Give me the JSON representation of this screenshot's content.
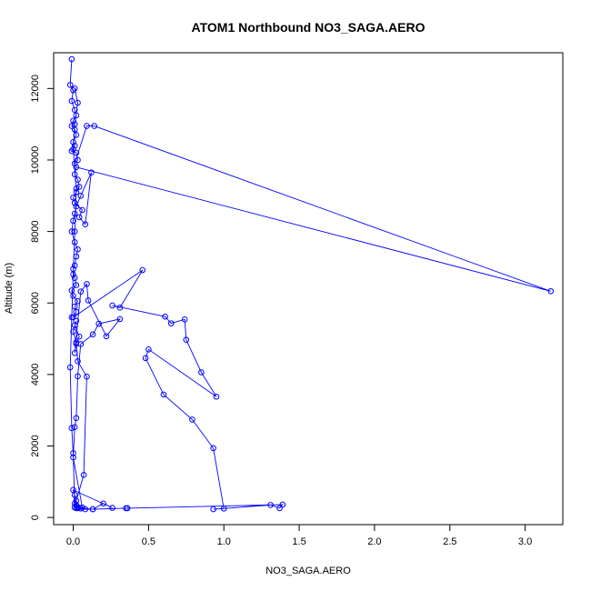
{
  "chart_data": {
    "type": "line",
    "title": "ATOM1 Northbound NO3_SAGA.AERO",
    "xlabel": "NO3_SAGA.AERO",
    "ylabel": "Altitude (m)",
    "xlim": [
      -0.13,
      3.25
    ],
    "ylim": [
      -200,
      13000
    ],
    "xticks": [
      "0.0",
      "0.5",
      "1.0",
      "1.5",
      "2.0",
      "2.5",
      "3.0"
    ],
    "yticks": [
      "0",
      "2000",
      "4000",
      "6000",
      "8000",
      "10000",
      "12000"
    ],
    "series_color": "#0000ff",
    "grid": false,
    "series": [
      {
        "marker": "open-circle",
        "x": [
          -0.01,
          -0.02,
          0.0,
          -0.01,
          0.01,
          0.02,
          0.0,
          -0.01,
          0.01,
          0.02,
          0.0,
          0.01,
          -0.01,
          0.02,
          0.03,
          0.01,
          0.09,
          0.14,
          3.17,
          0.02,
          0.01,
          0.03,
          0.04,
          0.02,
          0.0,
          0.01,
          0.06,
          0.04,
          0.08,
          0.12,
          0.05,
          0.02,
          0.01,
          0.0,
          -0.01,
          0.01,
          0.03,
          0.02,
          0.01,
          0.0,
          0.01,
          0.02,
          -0.01,
          0.0,
          0.03,
          0.01,
          0.02,
          0.0,
          0.46,
          0.31,
          0.26,
          0.61,
          0.65,
          0.74,
          0.75,
          0.85,
          0.95,
          0.5,
          0.48,
          0.6,
          0.79,
          0.93,
          1.0,
          0.93,
          1.31,
          1.37,
          1.39,
          0.36,
          0.35,
          0.13,
          0.08,
          0.05,
          0.02,
          0.03,
          0.01,
          0.02,
          0.07,
          0.09,
          0.03,
          0.02,
          0.04,
          0.01,
          0.02,
          0.0,
          0.02,
          0.01,
          0.05,
          0.09,
          0.1,
          0.22,
          0.31,
          0.17,
          0.13,
          0.05,
          0.03,
          0.02,
          0.01,
          0.0,
          0.06,
          0.03,
          0.02,
          0.01,
          0.0,
          0.26,
          0.2,
          0.13,
          0.01,
          0.0,
          -0.01,
          -0.02,
          -0.01,
          0.0,
          0.01,
          0.02,
          0.0,
          0.01,
          0.03,
          0.01
        ],
        "y": [
          12820,
          12100,
          11950,
          11650,
          11400,
          11250,
          11100,
          10950,
          10850,
          10700,
          10500,
          10400,
          10250,
          10200,
          10000,
          9900,
          10950,
          10950,
          6330,
          9800,
          9600,
          9450,
          9250,
          9100,
          8950,
          8800,
          8600,
          8400,
          8200,
          9650,
          9000,
          8700,
          8500,
          8300,
          8000,
          7700,
          7500,
          7300,
          7050,
          6950,
          6700,
          6500,
          6350,
          6200,
          6050,
          5900,
          5750,
          5600,
          6920,
          5870,
          5930,
          5620,
          5430,
          5540,
          4970,
          4060,
          3380,
          4700,
          4460,
          3440,
          2740,
          1940,
          250,
          230,
          350,
          260,
          360,
          260,
          260,
          230,
          230,
          250,
          260,
          290,
          390,
          470,
          1190,
          3940,
          4370,
          4860,
          5060,
          5380,
          5500,
          5200,
          4900,
          4600,
          6320,
          6530,
          6070,
          5070,
          5550,
          5420,
          5120,
          4850,
          3950,
          2780,
          2530,
          1680,
          280,
          260,
          350,
          630,
          770,
          270,
          390,
          230,
          280,
          1800,
          2500,
          4200,
          5600,
          6800,
          8000,
          9200,
          10300,
          11000,
          11600,
          12000
        ]
      }
    ]
  }
}
